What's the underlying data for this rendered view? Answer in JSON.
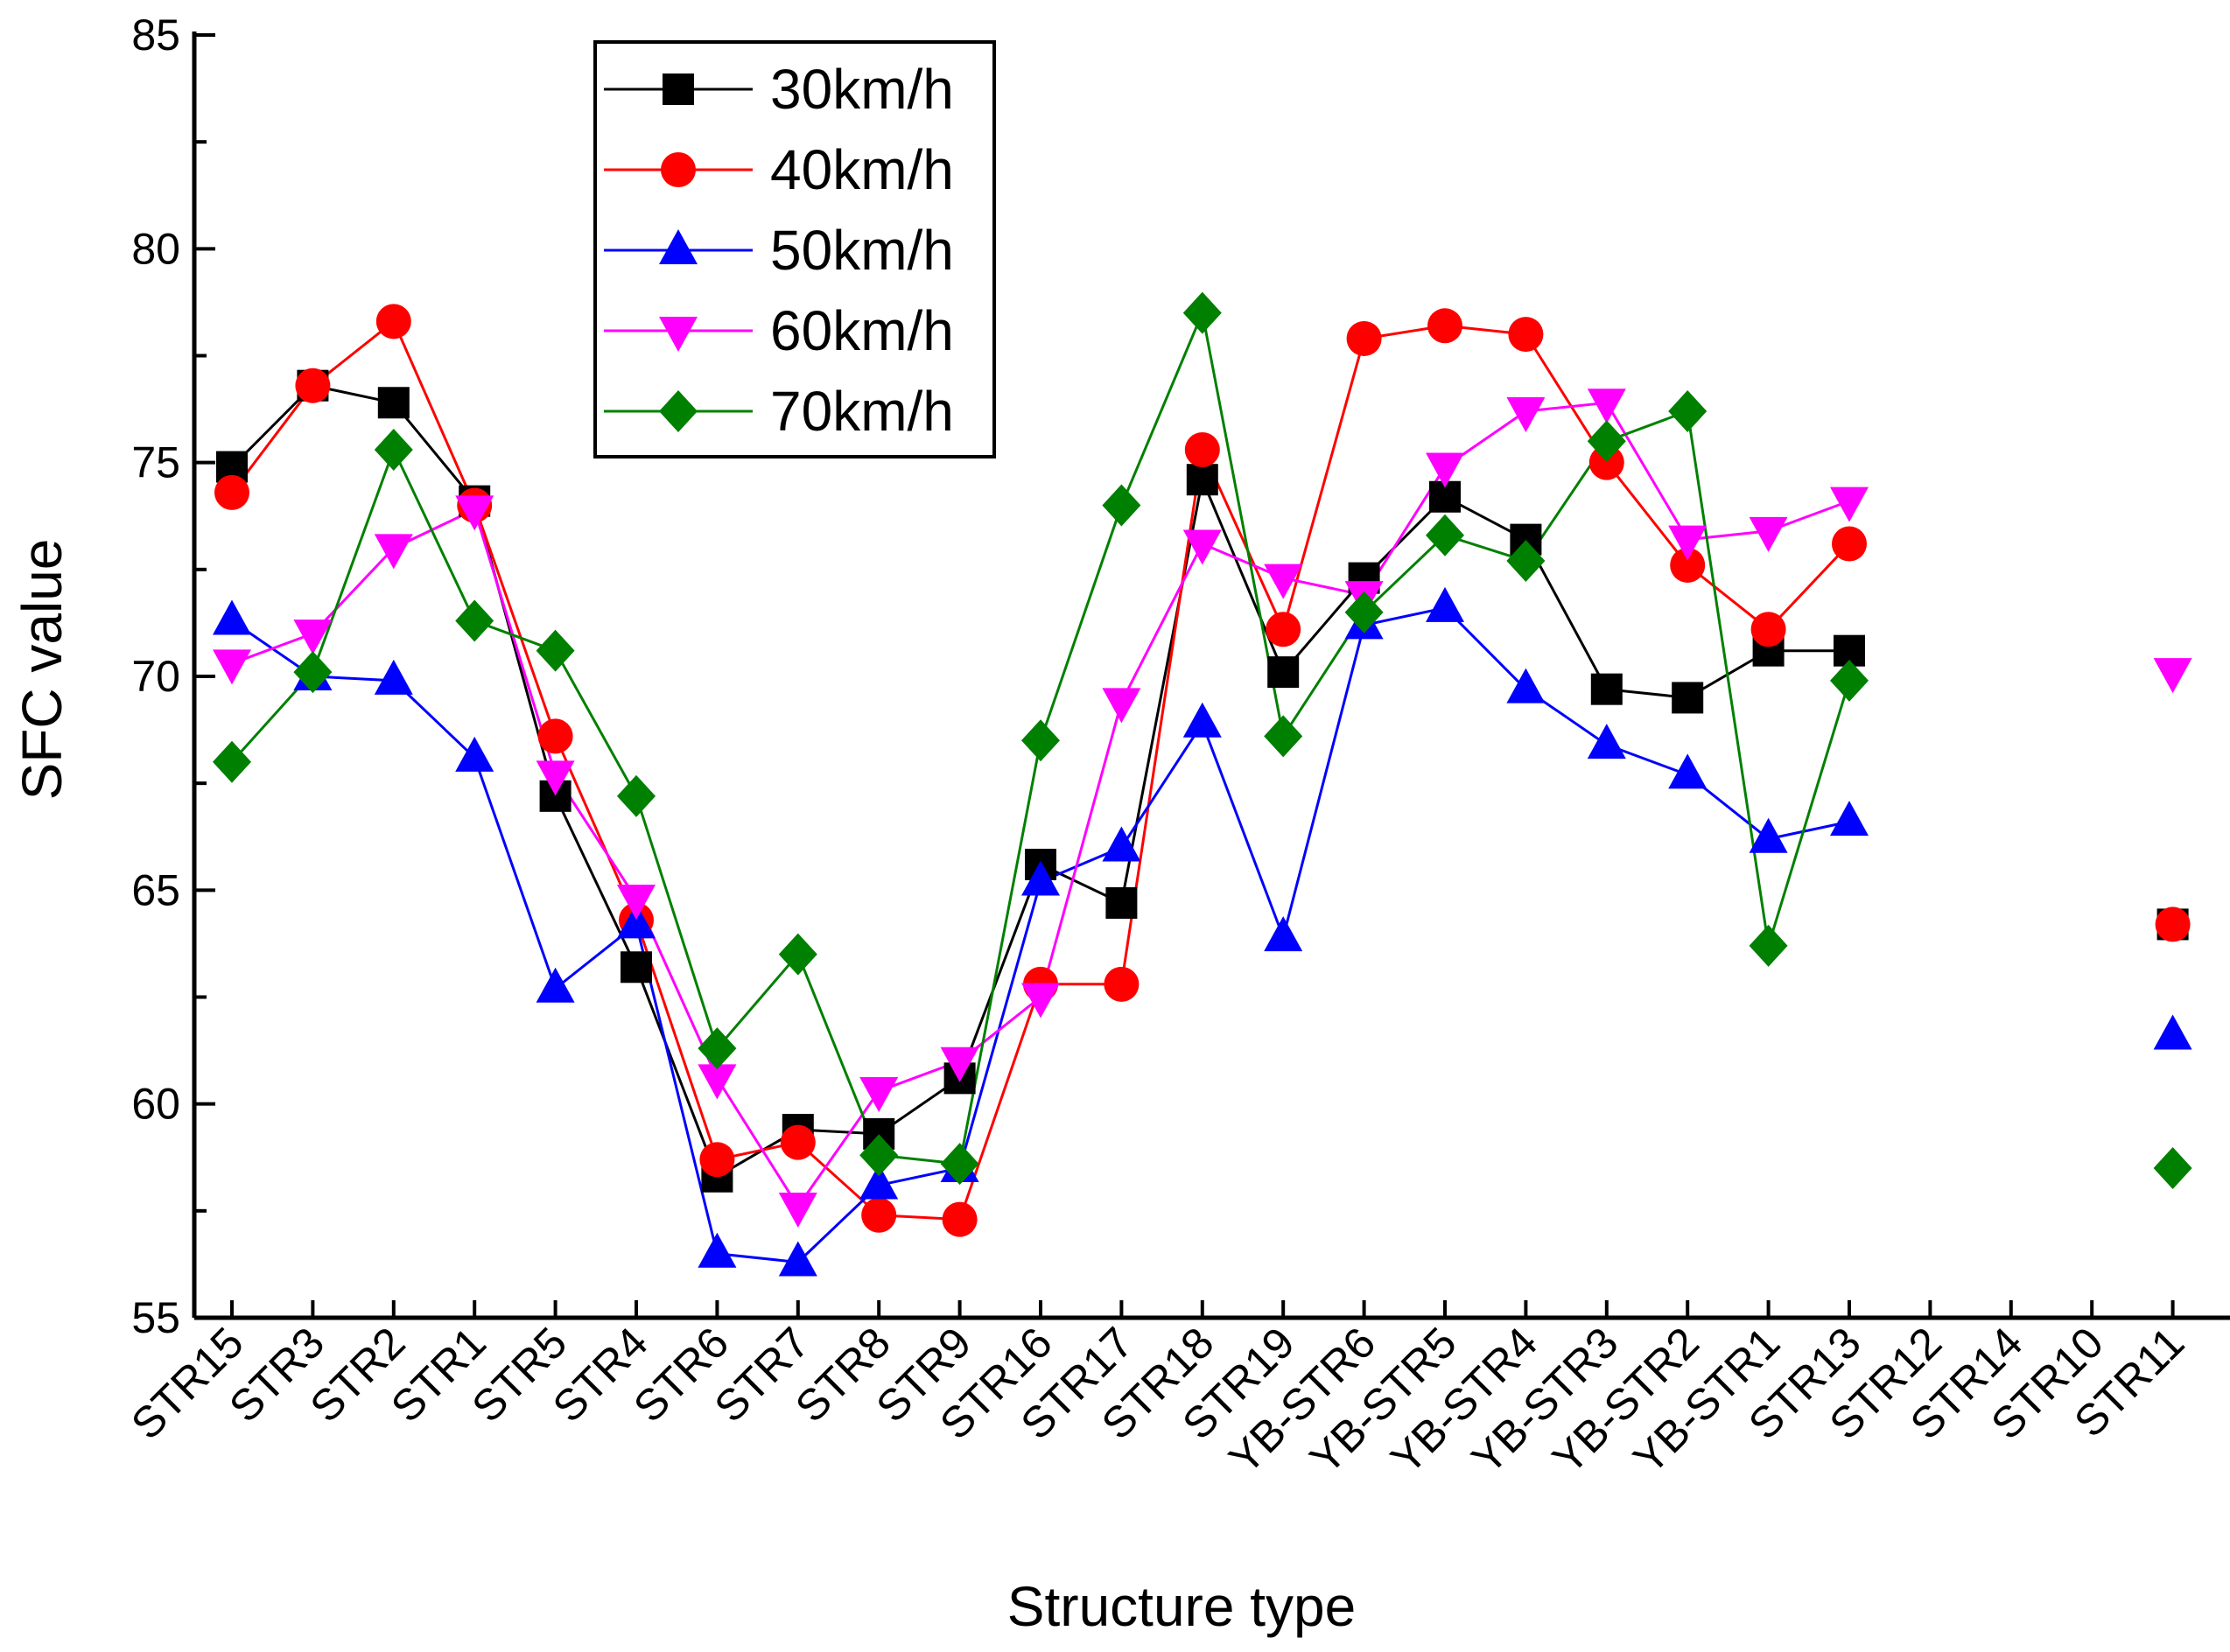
{
  "chart_data": {
    "type": "line",
    "xlabel": "Structure type",
    "ylabel": "SFC value",
    "ylim": [
      55,
      85
    ],
    "yticks": [
      55,
      60,
      65,
      70,
      75,
      80,
      85
    ],
    "categories": [
      "STR15",
      "STR3",
      "STR2",
      "STR1",
      "STR5",
      "STR4",
      "STR6",
      "STR7",
      "STR8",
      "STR9",
      "STR16",
      "STR17",
      "STR18",
      "STR19",
      "YB-STR6",
      "YB-STR5",
      "YB-STR4",
      "YB-STR3",
      "YB-STR2",
      "YB-STR1",
      "STR13",
      "STR12",
      "STR14",
      "STR10",
      "STR11"
    ],
    "legend_position": "top-left",
    "series": [
      {
        "name": "30km/h",
        "color": "#000000",
        "marker": "square",
        "values": [
          74.9,
          76.8,
          76.4,
          74.1,
          67.2,
          63.2,
          58.3,
          59.4,
          59.3,
          60.6,
          65.6,
          64.7,
          74.6,
          70.1,
          72.3,
          74.2,
          73.2,
          69.7,
          69.5,
          70.6,
          70.6,
          null,
          null,
          null,
          64.2
        ]
      },
      {
        "name": "40km/h",
        "color": "#ff0000",
        "marker": "circle",
        "values": [
          74.3,
          76.8,
          78.3,
          74.0,
          68.6,
          64.3,
          58.7,
          59.1,
          57.4,
          57.3,
          62.8,
          62.8,
          75.3,
          71.1,
          77.9,
          78.2,
          78.0,
          75.0,
          72.6,
          71.1,
          73.1,
          null,
          null,
          null,
          64.2
        ]
      },
      {
        "name": "50km/h",
        "color": "#0000ff",
        "marker": "triangle-up",
        "values": [
          71.3,
          70.0,
          69.9,
          68.1,
          62.7,
          64.2,
          56.5,
          56.3,
          58.1,
          58.5,
          65.2,
          66.0,
          68.9,
          63.9,
          71.2,
          71.6,
          69.7,
          68.4,
          67.7,
          66.2,
          66.6,
          null,
          null,
          null,
          61.6
        ]
      },
      {
        "name": "60km/h",
        "color": "#ff00ff",
        "marker": "triangle-down",
        "values": [
          70.3,
          71.0,
          73.0,
          73.9,
          67.7,
          64.8,
          60.6,
          57.6,
          60.3,
          61.0,
          62.5,
          69.4,
          73.1,
          72.3,
          71.9,
          74.9,
          76.2,
          76.4,
          73.2,
          73.4,
          74.1,
          null,
          null,
          null,
          70.1
        ]
      },
      {
        "name": "70km/h",
        "color": "#008000",
        "marker": "diamond",
        "values": [
          68.0,
          70.1,
          75.3,
          71.3,
          70.6,
          67.2,
          61.3,
          63.5,
          58.8,
          58.6,
          68.5,
          74.0,
          78.5,
          68.6,
          71.5,
          73.3,
          72.7,
          75.5,
          76.2,
          63.7,
          69.9,
          null,
          null,
          null,
          58.5
        ]
      }
    ]
  }
}
